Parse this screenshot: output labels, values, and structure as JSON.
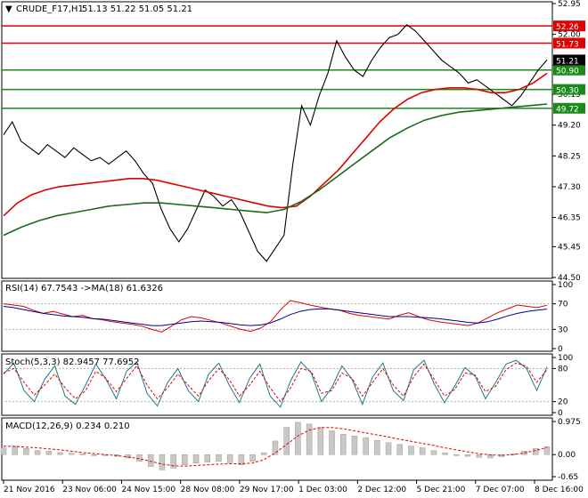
{
  "header": {
    "symbol": "CRUDE_F17,H1",
    "ohlc": "51.13 51.22 51.05 51.21"
  },
  "chart_data": {
    "type": "line",
    "instrument": "CRUDE_F17",
    "timeframe": "H1",
    "price_axis": {
      "ticks": [
        "52.95",
        "52.00",
        "51.05",
        "50.15",
        "49.20",
        "48.25",
        "47.30",
        "46.35",
        "45.45",
        "44.50"
      ],
      "ylim": [
        44.5,
        52.95
      ]
    },
    "time_axis_labels": [
      "21 Nov 2016",
      "23 Nov 06:00",
      "24 Nov 15:00",
      "28 Nov 08:00",
      "29 Nov 17:00",
      "1 Dec 03:00",
      "2 Dec 12:00",
      "5 Dec 21:00",
      "7 Dec 07:00",
      "8 Dec 16:00"
    ],
    "levels": [
      {
        "value": "52.26",
        "color": "#e00000"
      },
      {
        "value": "51.73",
        "color": "#e00000"
      },
      {
        "value": "50.90",
        "color": "#1a8a1a"
      },
      {
        "value": "50.30",
        "color": "#1a8a1a"
      },
      {
        "value": "49.72",
        "color": "#1a8a1a"
      }
    ],
    "current_price": "51.21",
    "price_series": [
      48.9,
      49.3,
      48.7,
      48.5,
      48.3,
      48.6,
      48.4,
      48.2,
      48.5,
      48.3,
      48.1,
      48.2,
      48.0,
      48.2,
      48.4,
      48.1,
      47.7,
      47.4,
      46.6,
      46.0,
      45.6,
      46.0,
      46.6,
      47.2,
      47.0,
      46.7,
      46.9,
      46.5,
      45.9,
      45.3,
      45.0,
      45.4,
      45.8,
      48.0,
      49.8,
      49.2,
      50.1,
      50.8,
      51.8,
      51.3,
      50.9,
      50.7,
      51.2,
      51.6,
      51.9,
      52.0,
      52.3,
      52.1,
      51.8,
      51.5,
      51.2,
      51.0,
      50.8,
      50.5,
      50.6,
      50.4,
      50.2,
      50.0,
      49.8,
      50.1,
      50.5,
      50.9,
      51.21
    ],
    "ma_red": [
      46.4,
      46.8,
      47.05,
      47.2,
      47.3,
      47.35,
      47.4,
      47.45,
      47.5,
      47.55,
      47.55,
      47.5,
      47.4,
      47.3,
      47.2,
      47.1,
      47.0,
      46.9,
      46.8,
      46.7,
      46.65,
      46.7,
      47.0,
      47.4,
      47.8,
      48.3,
      48.8,
      49.3,
      49.7,
      50.0,
      50.2,
      50.3,
      50.35,
      50.35,
      50.3,
      50.2,
      50.2,
      50.3,
      50.5,
      50.8
    ],
    "ma_green": [
      45.8,
      46.05,
      46.25,
      46.4,
      46.5,
      46.6,
      46.7,
      46.75,
      46.8,
      46.8,
      46.75,
      46.7,
      46.65,
      46.6,
      46.55,
      46.5,
      46.6,
      46.85,
      47.2,
      47.6,
      48.0,
      48.4,
      48.8,
      49.1,
      49.35,
      49.5,
      49.6,
      49.65,
      49.7,
      49.75,
      49.8,
      49.85
    ],
    "rsi": {
      "label": "RSI(14) 67.7543 ->MA(18) 61.6326",
      "ticks": [
        "100",
        "70",
        "30",
        "0"
      ],
      "ylim": [
        0,
        100
      ],
      "values": [
        70,
        68,
        66,
        60,
        55,
        58,
        54,
        50,
        52,
        47,
        45,
        42,
        40,
        38,
        35,
        30,
        26,
        35,
        45,
        50,
        48,
        44,
        40,
        35,
        30,
        27,
        32,
        42,
        60,
        75,
        72,
        68,
        65,
        62,
        60,
        55,
        52,
        50,
        48,
        46,
        52,
        56,
        50,
        45,
        42,
        40,
        38,
        36,
        40,
        48,
        56,
        62,
        68,
        66,
        64,
        67.7543
      ],
      "ma": [
        66,
        64,
        61,
        58,
        55,
        53,
        51,
        50,
        49,
        47,
        46,
        44,
        42,
        40,
        38,
        36,
        36,
        38,
        40,
        42,
        43,
        42,
        41,
        39,
        37,
        36,
        37,
        40,
        46,
        53,
        58,
        61,
        62,
        62,
        60,
        58,
        56,
        54,
        52,
        50,
        50,
        50,
        49,
        48,
        47,
        45,
        43,
        41,
        40,
        42,
        46,
        51,
        55,
        58,
        60,
        61.6326
      ]
    },
    "stoch": {
      "label": "Stoch(5,3,3) 82.9457 77.6952",
      "ticks": [
        "100",
        "80",
        "20",
        "0"
      ],
      "ylim": [
        0,
        100
      ],
      "main": [
        70,
        90,
        40,
        20,
        60,
        85,
        30,
        15,
        50,
        88,
        60,
        25,
        75,
        92,
        35,
        12,
        55,
        80,
        40,
        20,
        70,
        90,
        50,
        18,
        62,
        88,
        30,
        10,
        58,
        92,
        72,
        20,
        45,
        85,
        60,
        15,
        65,
        90,
        40,
        22,
        78,
        95,
        52,
        18,
        48,
        82,
        66,
        25,
        55,
        88,
        95,
        80,
        40,
        82.9457
      ],
      "signal": [
        72,
        80,
        55,
        32,
        50,
        70,
        45,
        25,
        40,
        75,
        62,
        38,
        62,
        85,
        50,
        25,
        45,
        70,
        50,
        30,
        58,
        80,
        60,
        30,
        50,
        75,
        45,
        20,
        45,
        80,
        75,
        35,
        40,
        72,
        62,
        30,
        55,
        80,
        50,
        30,
        65,
        88,
        60,
        30,
        42,
        72,
        68,
        38,
        48,
        78,
        90,
        84,
        55,
        77.6952
      ]
    },
    "macd": {
      "label": "MACD(12,26,9) 0.234 0.210",
      "ticks": [
        "0.975",
        "0.00",
        "-0.65"
      ],
      "ylim": [
        -0.65,
        0.975
      ],
      "hist": [
        0.2,
        0.25,
        0.18,
        0.12,
        0.1,
        0.06,
        0.04,
        0.02,
        0.0,
        -0.02,
        -0.05,
        -0.1,
        -0.2,
        -0.35,
        -0.45,
        -0.4,
        -0.3,
        -0.25,
        -0.22,
        -0.2,
        -0.24,
        -0.3,
        -0.2,
        0.05,
        0.4,
        0.8,
        0.95,
        0.9,
        0.8,
        0.7,
        0.6,
        0.55,
        0.5,
        0.42,
        0.35,
        0.3,
        0.25,
        0.2,
        0.12,
        0.05,
        0.0,
        -0.05,
        -0.08,
        -0.1,
        -0.06,
        0.02,
        0.1,
        0.18,
        0.234
      ],
      "signal": [
        0.25,
        0.24,
        0.22,
        0.2,
        0.17,
        0.14,
        0.1,
        0.06,
        0.03,
        0.0,
        -0.03,
        -0.07,
        -0.12,
        -0.2,
        -0.28,
        -0.33,
        -0.34,
        -0.32,
        -0.3,
        -0.28,
        -0.27,
        -0.27,
        -0.25,
        -0.15,
        0.05,
        0.3,
        0.55,
        0.72,
        0.8,
        0.8,
        0.76,
        0.7,
        0.64,
        0.58,
        0.52,
        0.45,
        0.39,
        0.33,
        0.27,
        0.2,
        0.14,
        0.08,
        0.03,
        -0.01,
        -0.02,
        0.0,
        0.05,
        0.12,
        0.21
      ]
    }
  }
}
